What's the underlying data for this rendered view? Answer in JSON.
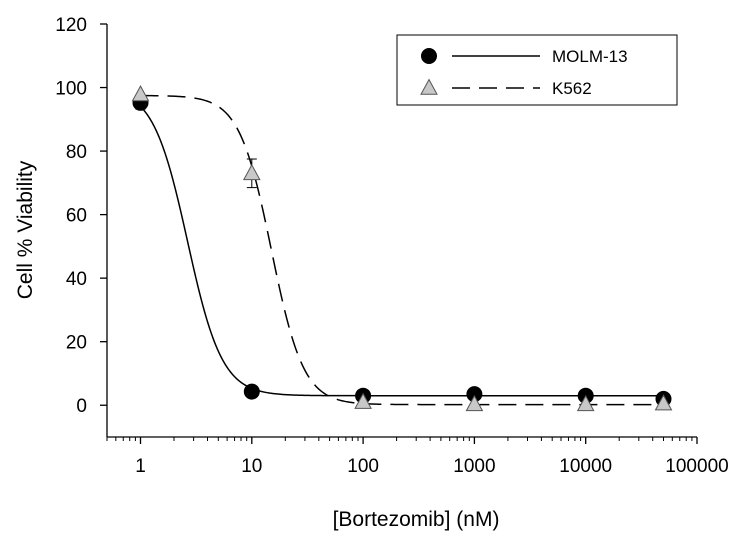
{
  "chart_data": {
    "type": "scatter",
    "xlabel": "[Bortezomib] (nM)",
    "ylabel": "Cell % Viability",
    "x_scale": "log",
    "xlim": [
      0.5,
      100000
    ],
    "ylim": [
      -10,
      120
    ],
    "x_ticks": [
      {
        "value": 1,
        "label": "1"
      },
      {
        "value": 10,
        "label": "10"
      },
      {
        "value": 100,
        "label": "100"
      },
      {
        "value": 1000,
        "label": "1000"
      },
      {
        "value": 10000,
        "label": "10000"
      },
      {
        "value": 100000,
        "label": "100000"
      }
    ],
    "y_ticks": [
      {
        "value": 0,
        "label": "0"
      },
      {
        "value": 20,
        "label": "20"
      },
      {
        "value": 40,
        "label": "40"
      },
      {
        "value": 60,
        "label": "60"
      },
      {
        "value": 80,
        "label": "80"
      },
      {
        "value": 100,
        "label": "100"
      },
      {
        "value": 120,
        "label": "120"
      }
    ],
    "grid": false,
    "legend_position": "top-right",
    "series": [
      {
        "name": "MOLM-13",
        "marker": "circle",
        "marker_color": "#000000",
        "line_style": "solid",
        "points": [
          {
            "x": 1,
            "y": 95.2,
            "err": 2.0
          },
          {
            "x": 10,
            "y": 4.3,
            "err": 0
          },
          {
            "x": 100,
            "y": 3.0,
            "err": 0
          },
          {
            "x": 1000,
            "y": 3.5,
            "err": 0
          },
          {
            "x": 10000,
            "y": 3.0,
            "err": 0
          },
          {
            "x": 50000,
            "y": 2.0,
            "err": 0
          }
        ],
        "fit": {
          "model": "four-parameter logistic",
          "bottom": 3.0,
          "top": 100.0,
          "ic50": 2.65,
          "hill": 2.8
        }
      },
      {
        "name": "K562",
        "marker": "triangle",
        "marker_color": "#c8c8c8",
        "line_style": "dashed",
        "points": [
          {
            "x": 1,
            "y": 97.8,
            "err": 0
          },
          {
            "x": 10,
            "y": 73.0,
            "err": 4.5
          },
          {
            "x": 100,
            "y": 1.0,
            "err": 0
          },
          {
            "x": 1000,
            "y": 0.3,
            "err": 0
          },
          {
            "x": 10000,
            "y": 0.3,
            "err": 0
          },
          {
            "x": 50000,
            "y": 0.5,
            "err": 0
          }
        ],
        "fit": {
          "model": "four-parameter logistic",
          "bottom": 0.2,
          "top": 97.5,
          "ic50": 15.0,
          "hill": 3.0
        }
      }
    ]
  }
}
